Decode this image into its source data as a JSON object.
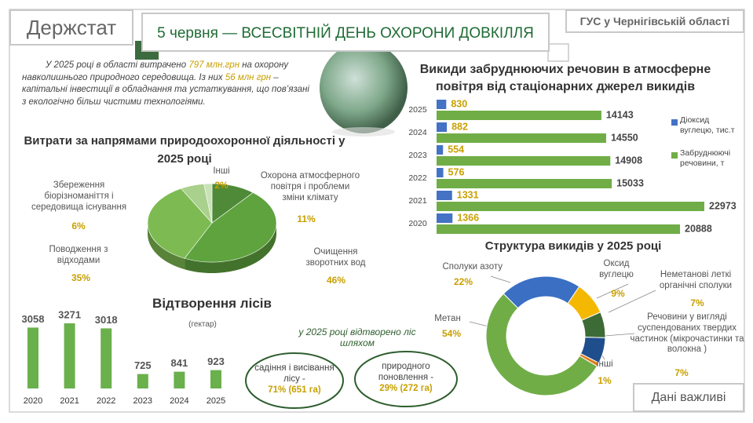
{
  "header": {
    "agency": "Держстат",
    "title": "5 червня — ВСЕСВІТНІЙ ДЕНЬ ОХОРОНИ ДОВКІЛЛЯ",
    "region": "ГУС у Чернігівській області"
  },
  "intro": [
    "У 2025 році в області витрачено ",
    "797 млн.грн",
    " на охорону навколишнього природного середовища. Із них ",
    "56 млн грн",
    " – капітальні інвестиції в обладнання та устаткування, що пов’язані з екологічно більш чистими технологіями."
  ],
  "forest_note": {
    "text": "у 2025 році відтворено ліс шляхом",
    "methods": [
      {
        "label": "садіння і висівання лісу -",
        "value": "71% (651 га)"
      },
      {
        "label": "природного поновлення -",
        "value": "29% (272 га)"
      }
    ]
  },
  "footer": "Дані важливі",
  "chart_data": [
    {
      "type": "bar",
      "orientation": "horizontal",
      "title": "Викиди забруднюючих речовин в атмосферне повітря від стаціонарних джерел викидів",
      "categories": [
        "2025",
        "2024",
        "2023",
        "2022",
        "2021",
        "2020"
      ],
      "series": [
        {
          "name": "Діоксид вуглецю, тис.т",
          "color": "#4472c4",
          "values": [
            830,
            882,
            554,
            576,
            1331,
            1366
          ]
        },
        {
          "name": "Забруднюючі речовини, т",
          "color": "#70ad47",
          "values": [
            14143,
            14550,
            14908,
            15033,
            22973,
            20888
          ]
        }
      ],
      "legend": "right"
    },
    {
      "type": "pie",
      "style": "3d",
      "title": "Витрати за напрямами природоохоронної діяльності у 2025 році",
      "categories": [
        "Охорона атмосферного повітря і проблеми зміни клімату",
        "Очищення зворотних вод",
        "Поводження з відходами",
        "Збереження біорізноманіття і середовища існування",
        "Інші"
      ],
      "values": [
        11,
        46,
        35,
        6,
        2
      ],
      "value_labels": [
        "11%",
        "46%",
        "35%",
        "6%",
        "2%"
      ],
      "colors": [
        "#4e8a38",
        "#5fa33f",
        "#7dbb52",
        "#a9d08c",
        "#c9e2b6"
      ]
    },
    {
      "type": "bar",
      "title": "Відтворення лісів",
      "subtitle": "(гектар)",
      "categories": [
        "2020",
        "2021",
        "2022",
        "2023",
        "2024",
        "2025"
      ],
      "values": [
        3058,
        3271,
        3018,
        725,
        841,
        923
      ],
      "color": "#6ab04c"
    },
    {
      "type": "donut",
      "title": "Структура викидів у 2025 році",
      "categories": [
        "Сполуки азоту",
        "Оксид вуглецю",
        "Неметанові леткі органічні сполуки",
        "Речовини у вигляді суспендованих твердих частинок (мікрочастинки та волокна )",
        "Інші",
        "Метан"
      ],
      "values": [
        22,
        9,
        7,
        7,
        1,
        54
      ],
      "value_labels": [
        "22%",
        "9%",
        "7%",
        "7%",
        "1%",
        "54%"
      ],
      "colors": [
        "#3a6fc4",
        "#f5b800",
        "#3d6b35",
        "#1f4e8c",
        "#e07b1a",
        "#70ad47"
      ]
    }
  ]
}
